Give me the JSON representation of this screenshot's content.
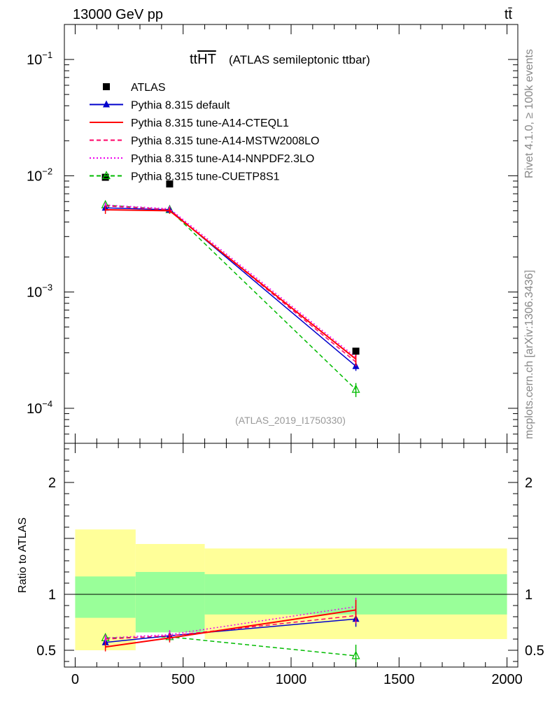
{
  "header": {
    "energy_label": "13000 GeV pp",
    "process_label": "tt̄"
  },
  "side_texts": {
    "rivet": "Rivet 4.1.0, ≥ 100k events",
    "mcplots": "mcplots.cern.ch [arXiv:1306.3436]"
  },
  "chart_data": [
    {
      "type": "line",
      "title": "ttHT",
      "title_prefix": "tt",
      "title_overlined": "HT",
      "subtitle": "(ATLAS semileptonic ttbar)",
      "analysis_id": "(ATLAS_2019_I1750330)",
      "yscale": "log",
      "ylim": [
        5e-05,
        0.2
      ],
      "xlim": [
        -50,
        2050
      ],
      "yticks": [
        {
          "value": 0.1,
          "mantissa": "10",
          "exp": "−1"
        },
        {
          "value": 0.01,
          "mantissa": "10",
          "exp": "−2"
        },
        {
          "value": 0.001,
          "mantissa": "10",
          "exp": "−3"
        },
        {
          "value": 0.0001,
          "mantissa": "10",
          "exp": "−4"
        }
      ],
      "legend_position": "top-left",
      "data": {
        "name": "ATLAS",
        "x": [
          140,
          437.5,
          1300
        ],
        "y": [
          0.0097,
          0.0085,
          0.00031
        ]
      },
      "series": [
        {
          "name": "Pythia 8.315 default",
          "color": "#0000cc",
          "dash": "solid",
          "marker": "triangle-filled",
          "x": [
            140,
            437.5,
            1300
          ],
          "y": [
            0.0053,
            0.0051,
            0.00023
          ],
          "err": [
            0.0003,
            0.0003,
            2e-05
          ]
        },
        {
          "name": "Pythia 8.315 tune-A14-CTEQL1",
          "color": "#ff0000",
          "dash": "solid",
          "marker": "none",
          "x": [
            140,
            437.5,
            1300
          ],
          "y": [
            0.0051,
            0.005,
            0.000265
          ],
          "err": [
            0.0004,
            0.0003,
            3e-05
          ]
        },
        {
          "name": "Pythia 8.315 tune-A14-MSTW2008LO",
          "color": "#ff0066",
          "dash": "dashed",
          "marker": "none",
          "x": [
            140,
            437.5,
            1300
          ],
          "y": [
            0.0055,
            0.0051,
            0.00025
          ],
          "err": [
            0.0003,
            0.0003,
            2e-05
          ]
        },
        {
          "name": "Pythia 8.315 tune-A14-NNPDF2.3LO",
          "color": "#ee00ee",
          "dash": "dotted",
          "marker": "none",
          "x": [
            140,
            437.5,
            1300
          ],
          "y": [
            0.0056,
            0.0052,
            0.000275
          ],
          "err": [
            0.0003,
            0.0003,
            2e-05
          ]
        },
        {
          "name": "Pythia 8.315 tune-CUETP8S1",
          "color": "#00bb00",
          "dash": "dashed",
          "marker": "triangle-open",
          "x": [
            140,
            437.5,
            1300
          ],
          "y": [
            0.0056,
            0.0051,
            0.000145
          ],
          "err": [
            0.0003,
            0.0003,
            2e-05
          ]
        }
      ]
    },
    {
      "type": "line",
      "title": "",
      "ylabel": "Ratio to ATLAS",
      "xlabel": "",
      "ylim": [
        0.35,
        2.35
      ],
      "xlim": [
        -50,
        2050
      ],
      "xticks": [
        "0",
        "500",
        "1000",
        "1500",
        "2000"
      ],
      "yticks": [
        "0.5",
        "1",
        "2"
      ],
      "bands": [
        {
          "x0": 0,
          "x1": 280,
          "yellow": [
            0.5,
            1.58
          ],
          "green": [
            0.79,
            1.16
          ]
        },
        {
          "x0": 280,
          "x1": 600,
          "yellow": [
            0.66,
            1.45
          ],
          "green": [
            0.66,
            1.2
          ]
        },
        {
          "x0": 600,
          "x1": 2000,
          "yellow": [
            0.6,
            1.41
          ],
          "green": [
            0.82,
            1.18
          ]
        }
      ],
      "series": [
        {
          "name": "Pythia 8.315 default",
          "x": [
            140,
            437.5,
            1300
          ],
          "y": [
            0.57,
            0.63,
            0.78
          ],
          "err": [
            0.03,
            0.04,
            0.07
          ]
        },
        {
          "name": "Pythia 8.315 tune-A14-CTEQL1",
          "x": [
            140,
            437.5,
            1300
          ],
          "y": [
            0.53,
            0.61,
            0.86
          ],
          "err": [
            0.04,
            0.04,
            0.09
          ]
        },
        {
          "name": "Pythia 8.315 tune-A14-MSTW2008LO",
          "x": [
            140,
            437.5,
            1300
          ],
          "y": [
            0.6,
            0.63,
            0.81
          ],
          "err": [
            0.03,
            0.04,
            0.07
          ]
        },
        {
          "name": "Pythia 8.315 tune-A14-NNPDF2.3LO",
          "x": [
            140,
            437.5,
            1300
          ],
          "y": [
            0.61,
            0.64,
            0.89
          ],
          "err": [
            0.03,
            0.04,
            0.08
          ]
        },
        {
          "name": "Pythia 8.315 tune-CUETP8S1",
          "x": [
            140,
            437.5,
            1300
          ],
          "y": [
            0.61,
            0.62,
            0.45
          ],
          "err": [
            0.03,
            0.04,
            0.1
          ]
        }
      ]
    }
  ]
}
